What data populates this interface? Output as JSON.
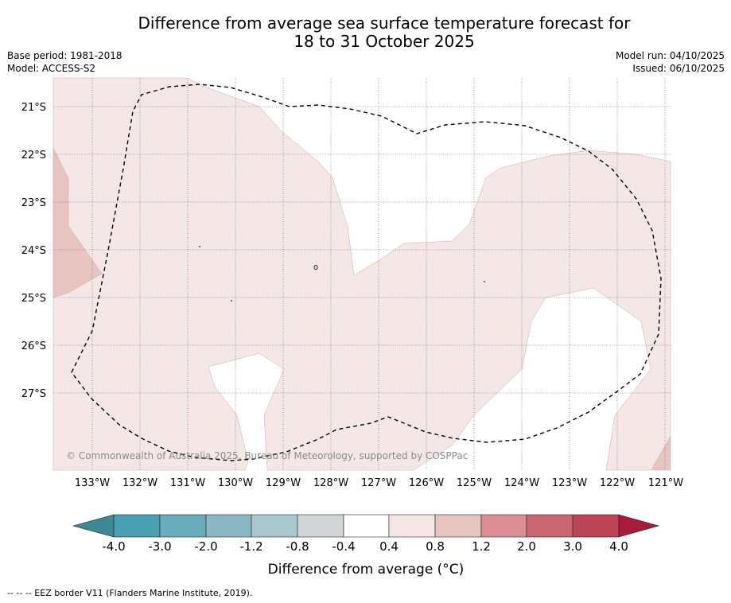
{
  "title": {
    "line1": "Difference from average sea surface temperature forecast for",
    "line2": "18 to 31 October 2025"
  },
  "meta": {
    "base_period": "Base period: 1981-2018",
    "model": "Model: ACCESS-S2",
    "model_run": "Model run: 04/10/2025",
    "issued": "Issued: 06/10/2025"
  },
  "map": {
    "lat_labels": [
      "21°S",
      "22°S",
      "23°S",
      "24°S",
      "25°S",
      "26°S",
      "27°S"
    ],
    "lon_labels": [
      "133°W",
      "132°W",
      "131°W",
      "130°W",
      "129°W",
      "128°W",
      "127°W",
      "126°W",
      "125°W",
      "124°W",
      "123°W",
      "122°W",
      "121°W"
    ],
    "copyright": "© Commonwealth of Australia 2025, Bureau of Meteorology, supported by COSPPac",
    "colors": {
      "anom_0_4_0_8": "#f4e7e6",
      "anom_0_8_1_2": "#e6c5c1",
      "neutral": "#ffffff"
    }
  },
  "colorbar": {
    "ticks": [
      "-4.0",
      "-3.0",
      "-2.0",
      "-1.2",
      "-0.8",
      "-0.4",
      "0.4",
      "0.8",
      "1.2",
      "2.0",
      "3.0",
      "4.0"
    ],
    "colors": [
      "#3e8893",
      "#46a0b1",
      "#6aadbc",
      "#8ab8c5",
      "#a9c8cd",
      "#d2d6d7",
      "#ffffff",
      "#f4e7e6",
      "#e6c5c1",
      "#d98e94",
      "#cb6770",
      "#bd4455",
      "#a91b3b"
    ],
    "label": "Difference from average (°C)"
  },
  "footnote": "--  --  -- EEZ border V11 (Flanders Marine Institute, 2019)."
}
